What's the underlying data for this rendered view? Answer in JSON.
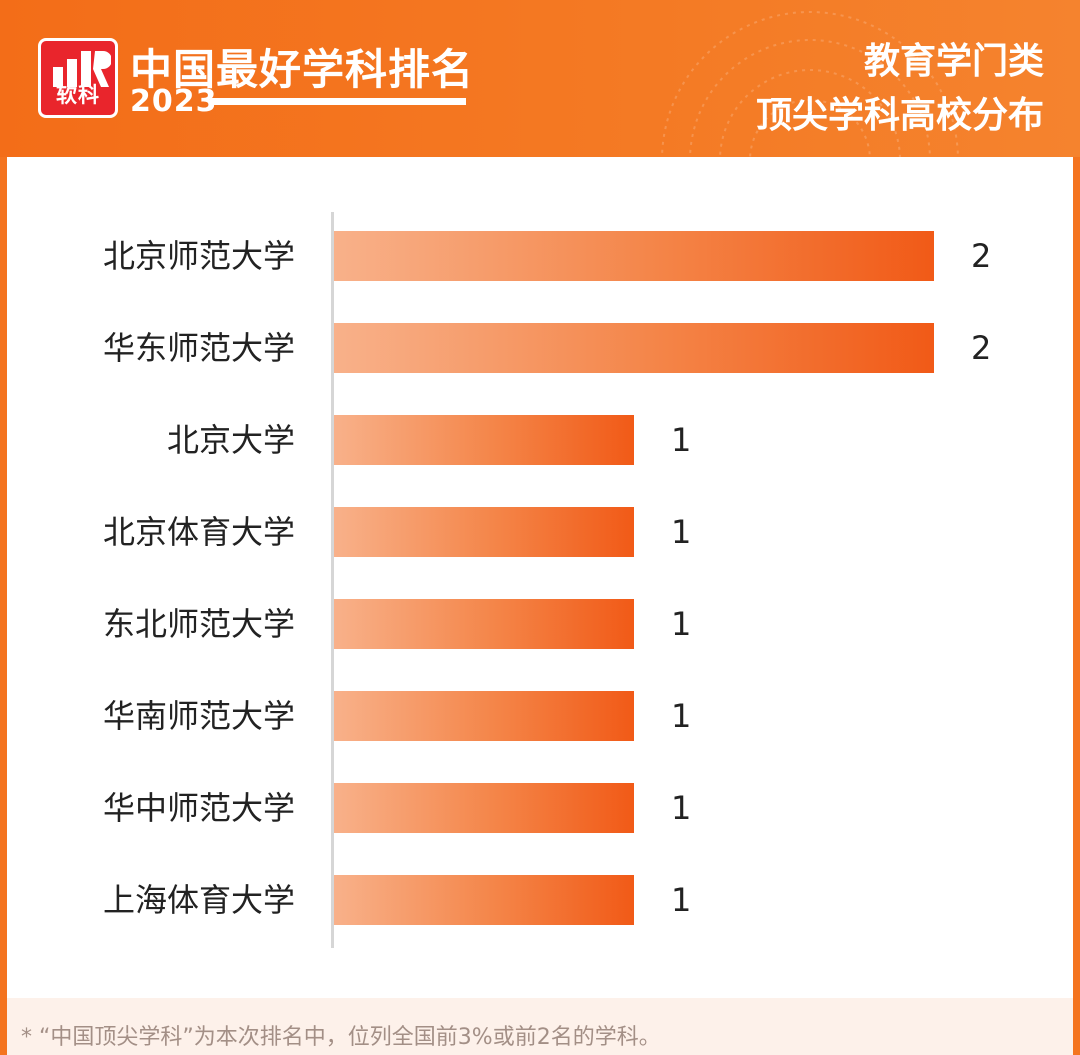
{
  "header": {
    "brand_title": "中国最好学科排名",
    "brand_year": "2023",
    "logo_text": "软科",
    "subtitle_line1": "教育学门类",
    "subtitle_line2": "顶尖学科高校分布"
  },
  "footnote": "* “中国顶尖学科”为本次排名中，位列全国前3%或前2名的学科。",
  "colors": {
    "header_bg": "#f36d18",
    "bar_start": "#f8b18a",
    "bar_end": "#f15a17",
    "logo_red": "#e9252c"
  },
  "chart_data": {
    "type": "bar",
    "orientation": "horizontal",
    "categories": [
      "北京师范大学",
      "华东师范大学",
      "北京大学",
      "北京体育大学",
      "东北师范大学",
      "华南师范大学",
      "华中师范大学",
      "上海体育大学"
    ],
    "values": [
      2,
      2,
      1,
      1,
      1,
      1,
      1,
      1
    ],
    "title": "顶尖学科高校分布",
    "xlabel": "",
    "ylabel": "",
    "xlim": [
      0,
      2
    ],
    "grid": false,
    "legend": "none"
  }
}
